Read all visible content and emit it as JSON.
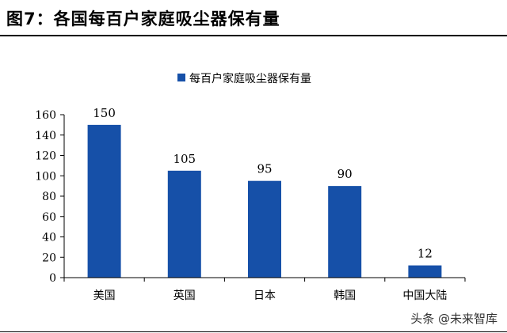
{
  "figure": {
    "title": "图7：各国每百户家庭吸尘器保有量"
  },
  "watermark": "头条 @未来智库",
  "colors": {
    "bar": "#1650A8",
    "axis": "#000000",
    "text": "#000000"
  },
  "chart_data": {
    "type": "bar",
    "categories": [
      "美国",
      "英国",
      "日本",
      "韩国",
      "中国大陆"
    ],
    "series": [
      {
        "name": "每百户家庭吸尘器保有量",
        "values": [
          150,
          105,
          95,
          90,
          12
        ]
      }
    ],
    "data_labels": [
      "150",
      "105",
      "95",
      "90",
      "12"
    ],
    "ylim": [
      0,
      160
    ],
    "yticks": [
      0,
      20,
      40,
      60,
      80,
      100,
      120,
      140,
      160
    ],
    "ytick_labels": [
      "0",
      "20",
      "40",
      "60",
      "80",
      "100",
      "120",
      "140",
      "160"
    ],
    "xlabel": "",
    "ylabel": "",
    "grid": false,
    "legend_position": "top"
  }
}
